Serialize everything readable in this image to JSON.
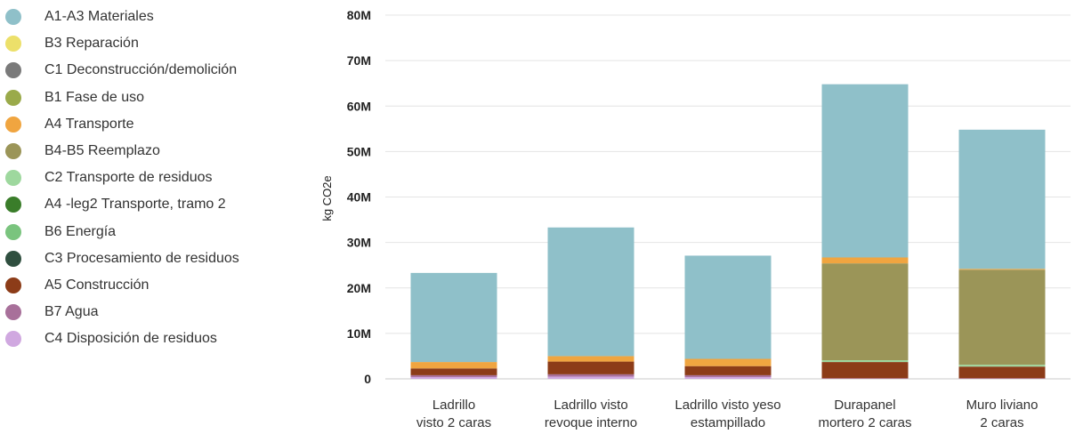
{
  "chart_data": {
    "type": "bar",
    "stacked": true,
    "ylabel": "kg CO2e",
    "ylim": [
      0,
      80000000
    ],
    "yticks": [
      0,
      10000000,
      20000000,
      30000000,
      40000000,
      50000000,
      60000000,
      70000000,
      80000000
    ],
    "ytick_labels": [
      "0",
      "10M",
      "20M",
      "30M",
      "40M",
      "50M",
      "60M",
      "70M",
      "80M"
    ],
    "grid": true,
    "legend_position": "left",
    "categories": [
      [
        "Ladrillo",
        "visto 2 caras"
      ],
      [
        "Ladrillo visto",
        "revoque interno"
      ],
      [
        "Ladrillo visto yeso",
        "estampillado"
      ],
      [
        "Durapanel",
        "mortero 2 caras"
      ],
      [
        "Muro liviano",
        "2 caras"
      ]
    ],
    "series": [
      {
        "name": "C4 Disposición de residuos",
        "color": "#d0a8e0",
        "values": [
          400000,
          500000,
          400000,
          100000,
          100000
        ]
      },
      {
        "name": "B7 Agua",
        "color": "#a8709a",
        "values": [
          400000,
          500000,
          400000,
          0,
          0
        ]
      },
      {
        "name": "A5 Construcción",
        "color": "#8c3c18",
        "values": [
          1500000,
          2800000,
          2000000,
          3600000,
          2600000
        ]
      },
      {
        "name": "C3 Procesamiento de residuos",
        "color": "#2f4f3f",
        "values": [
          0,
          0,
          0,
          0,
          0
        ]
      },
      {
        "name": "B6 Energía",
        "color": "#7ac47e",
        "values": [
          0,
          0,
          0,
          0,
          0
        ]
      },
      {
        "name": "A4 -leg2 Transporte, tramo 2",
        "color": "#3a7d2a",
        "values": [
          0,
          0,
          0,
          0,
          0
        ]
      },
      {
        "name": "C2 Transporte de residuos",
        "color": "#9ed89e",
        "values": [
          0,
          0,
          0,
          400000,
          400000
        ]
      },
      {
        "name": "B4-B5 Reemplazo",
        "color": "#9b9558",
        "values": [
          0,
          0,
          0,
          21300000,
          20900000
        ]
      },
      {
        "name": "A4 Transporte",
        "color": "#f0a540",
        "values": [
          1400000,
          1200000,
          1600000,
          1300000,
          200000
        ]
      },
      {
        "name": "B1 Fase de uso",
        "color": "#9aaa4a",
        "values": [
          0,
          0,
          0,
          0,
          0
        ]
      },
      {
        "name": "C1 Deconstrucción/demolición",
        "color": "#7a7a7a",
        "values": [
          0,
          0,
          0,
          0,
          0
        ]
      },
      {
        "name": "B3 Reparación",
        "color": "#ece06a",
        "values": [
          0,
          0,
          0,
          0,
          0
        ]
      },
      {
        "name": "A1-A3 Materiales",
        "color": "#8fc0c9",
        "values": [
          19600000,
          28300000,
          22700000,
          38100000,
          30600000
        ]
      }
    ],
    "legend": [
      {
        "name": "A1-A3 Materiales",
        "color": "#8fc0c9"
      },
      {
        "name": "B3 Reparación",
        "color": "#ece06a"
      },
      {
        "name": "C1 Deconstrucción/demolición",
        "color": "#7a7a7a"
      },
      {
        "name": "B1 Fase de uso",
        "color": "#9aaa4a"
      },
      {
        "name": "A4 Transporte",
        "color": "#f0a540"
      },
      {
        "name": "B4-B5 Reemplazo",
        "color": "#9b9558"
      },
      {
        "name": "C2 Transporte de residuos",
        "color": "#9ed89e"
      },
      {
        "name": "A4 -leg2 Transporte, tramo 2",
        "color": "#3a7d2a"
      },
      {
        "name": "B6 Energía",
        "color": "#7ac47e"
      },
      {
        "name": "C3 Procesamiento de residuos",
        "color": "#2f4f3f"
      },
      {
        "name": "A5 Construcción",
        "color": "#8c3c18"
      },
      {
        "name": "B7 Agua",
        "color": "#a8709a"
      },
      {
        "name": "C4 Disposición de residuos",
        "color": "#d0a8e0"
      }
    ]
  }
}
